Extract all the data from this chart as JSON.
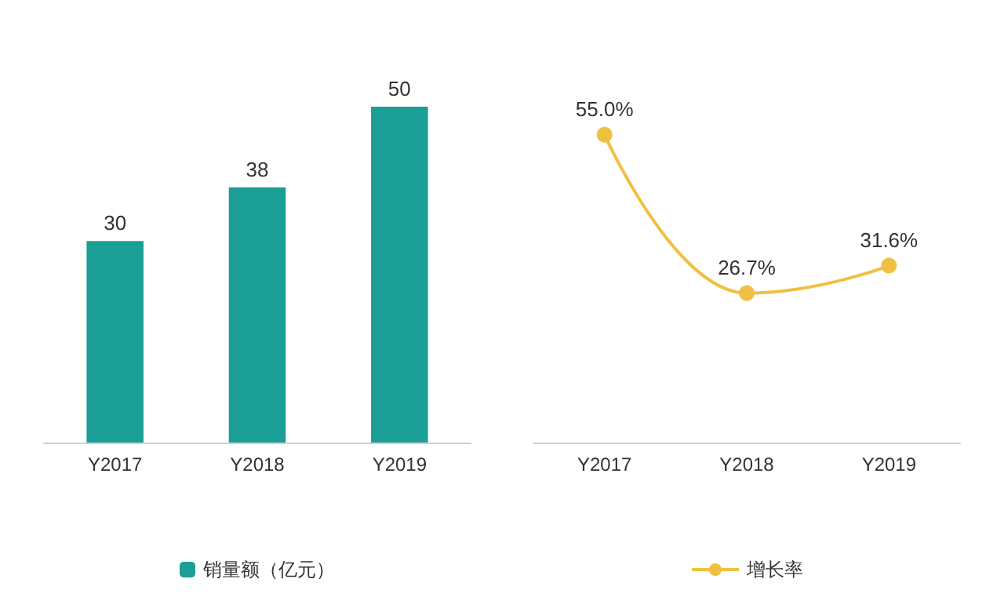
{
  "chart_data": [
    {
      "type": "bar",
      "categories": [
        "Y2017",
        "Y2018",
        "Y2019"
      ],
      "series": [
        {
          "name": "销量额（亿元）",
          "color": "#1a9e96",
          "values": [
            30,
            38,
            50
          ]
        }
      ],
      "data_labels": true,
      "legend": "bottom"
    },
    {
      "type": "line",
      "categories": [
        "Y2017",
        "Y2018",
        "Y2019"
      ],
      "series": [
        {
          "name": "增长率",
          "color": "#f0c040",
          "values": [
            55.0,
            26.7,
            31.6
          ],
          "value_labels": [
            "55.0%",
            "26.7%",
            "31.6%"
          ]
        }
      ],
      "marker": "circle",
      "legend": "bottom"
    }
  ]
}
